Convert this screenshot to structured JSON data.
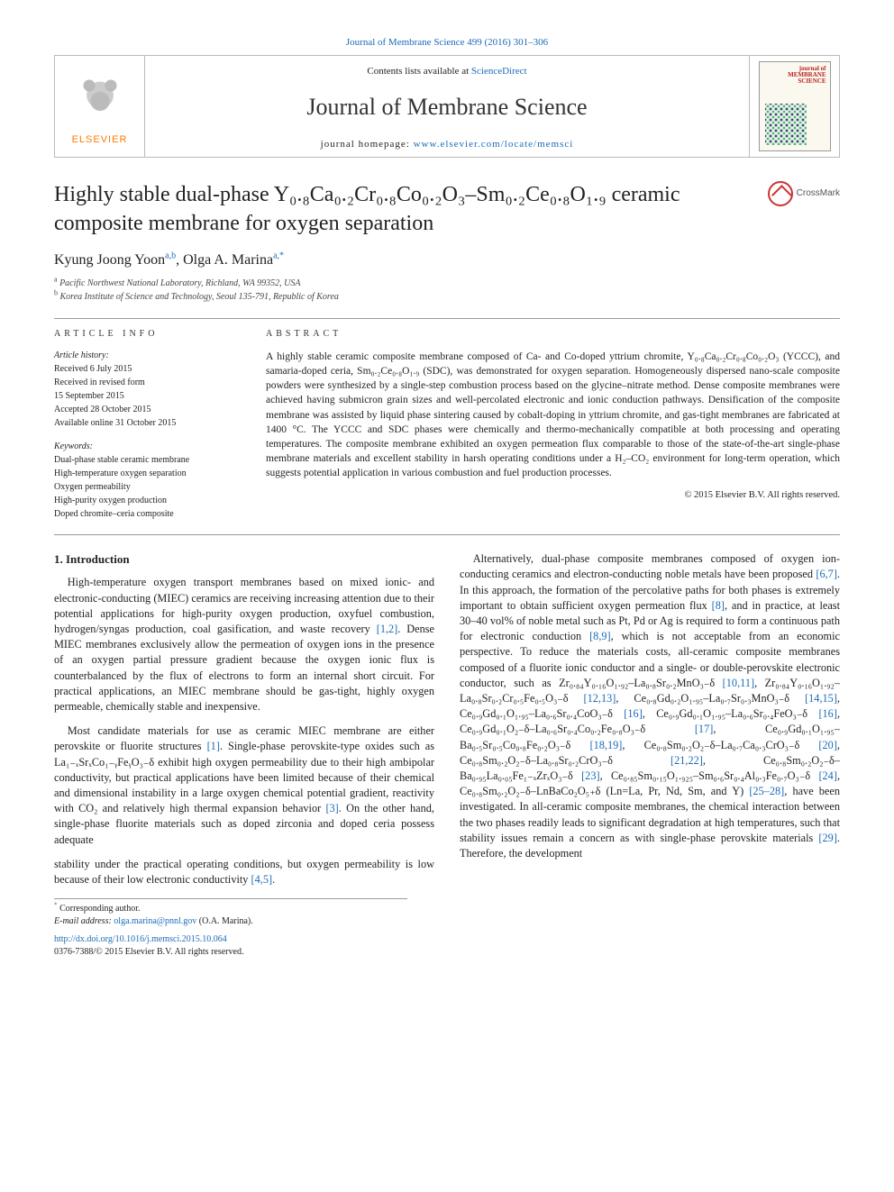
{
  "topCitation": "Journal of Membrane Science 499 (2016) 301–306",
  "header": {
    "elsevier": "ELSEVIER",
    "contentsPrefix": "Contents lists available at ",
    "contentsLink": "ScienceDirect",
    "journalName": "Journal of Membrane Science",
    "homepagePrefix": "journal homepage: ",
    "homepageLink": "www.elsevier.com/locate/memsci",
    "coverLine1": "journal of",
    "coverLine2": "MEMBRANE",
    "coverLine3": "SCIENCE"
  },
  "title": "Highly stable dual-phase Y₀.₈Ca₀.₂Cr₀.₈Co₀.₂O₃–Sm₀.₂Ce₀.₈O₁.₉ ceramic composite membrane for oxygen separation",
  "crossmark": "CrossMark",
  "authors": {
    "a1_name": "Kyung Joong Yoon",
    "a1_sup": "a,b",
    "sep": ", ",
    "a2_name": "Olga A. Marina",
    "a2_sup": "a,",
    "star": "*"
  },
  "affiliations": {
    "a_sup": "a",
    "a_text": " Pacific Northwest National Laboratory, Richland, WA 99352, USA",
    "b_sup": "b",
    "b_text": " Korea Institute of Science and Technology, Seoul 135-791, Republic of Korea"
  },
  "meta": {
    "leftHeading": "article info",
    "historyLabel": "Article history:",
    "received": "Received 6 July 2015",
    "revised1": "Received in revised form",
    "revised2": "15 September 2015",
    "accepted": "Accepted 28 October 2015",
    "online": "Available online 31 October 2015",
    "keywordsLabel": "Keywords:",
    "kw1": "Dual-phase stable ceramic membrane",
    "kw2": "High-temperature oxygen separation",
    "kw3": "Oxygen permeability",
    "kw4": "High-purity oxygen production",
    "kw5": "Doped chromite–ceria composite",
    "abstractHeading": "abstract"
  },
  "abstractText": "A highly stable ceramic composite membrane composed of Ca- and Co-doped yttrium chromite, Y₀.₈Ca₀.₂Cr₀.₈Co₀.₂O₃ (YCCC), and samaria-doped ceria, Sm₀.₂Ce₀.₈O₁.₉ (SDC), was demonstrated for oxygen separation. Homogeneously dispersed nano-scale composite powders were synthesized by a single-step combustion process based on the glycine–nitrate method. Dense composite membranes were achieved having submicron grain sizes and well-percolated electronic and ionic conduction pathways. Densification of the composite membrane was assisted by liquid phase sintering caused by cobalt-doping in yttrium chromite, and gas-tight membranes are fabricated at 1400 °C. The YCCC and SDC phases were chemically and thermo-mechanically compatible at both processing and operating temperatures. The composite membrane exhibited an oxygen permeation flux comparable to those of the state-of-the-art single-phase membrane materials and excellent stability in harsh operating conditions under a H₂–CO₂ environment for long-term operation, which suggests potential application in various combustion and fuel production processes.",
  "copyright": "© 2015 Elsevier B.V. All rights reserved.",
  "intro": {
    "heading": "1.  Introduction",
    "p1a": "High-temperature oxygen transport membranes based on mixed ionic- and electronic-conducting (MIEC) ceramics are receiving increasing attention due to their potential applications for high-purity oxygen production, oxyfuel combustion, hydrogen/syngas production, coal gasification, and waste recovery ",
    "p1link": "[1,2]",
    "p1b": ". Dense MIEC membranes exclusively allow the permeation of oxygen ions in the presence of an oxygen partial pressure gradient because the oxygen ionic flux is counterbalanced by the flux of electrons to form an internal short circuit. For practical applications, an MIEC membrane should be gas-tight, highly oxygen permeable, chemically stable and inexpensive.",
    "p2a": "Most candidate materials for use as ceramic MIEC membrane are either perovskite or fluorite structures ",
    "p2link1": "[1]",
    "p2b": ". Single-phase perovskite-type oxides such as La₁₋ₓSrₓCo₁₋ᵧFeᵧO₃₋δ exhibit high oxygen permeability due to their high ambipolar conductivity, but practical applications have been limited because of their chemical and dimensional instability in a large oxygen chemical potential gradient, reactivity with CO₂ and relatively high thermal expansion behavior ",
    "p2link2": "[3]",
    "p2c": ". On the other hand, single-phase fluorite materials such as doped zirconia and doped ceria possess adequate",
    "p2d_a": "stability under the practical operating conditions, but oxygen permeability is low because of their low electronic conductivity ",
    "p2d_link": "[4,5]",
    "p2d_b": ".",
    "p3a": "Alternatively, dual-phase composite membranes composed of oxygen ion-conducting ceramics and electron-conducting noble metals have been proposed ",
    "p3l1": "[6,7]",
    "p3b": ". In this approach, the formation of the percolative paths for both phases is extremely important to obtain sufficient oxygen permeation flux ",
    "p3l2": "[8]",
    "p3c": ", and in practice, at least 30–40 vol% of noble metal such as Pt, Pd or Ag is required to form a continuous path for electronic conduction ",
    "p3l3": "[8,9]",
    "p3d": ", which is not acceptable from an economic perspective. To reduce the materials costs, all-ceramic composite membranes composed of a fluorite ionic conductor and a single- or double-perovskite electronic conductor, such as Zr₀.₈₄Y₀.₁₆O₁.₉₂–La₀.₈Sr₀.₂MnO₃₋δ ",
    "p3l4": "[10,11]",
    "p3e": ", Zr₀.₈₄Y₀.₁₆O₁.₉₂–La₀.₈Sr₀.₂Cr₀.₅Fe₀.₅O₃₋δ ",
    "p3l5": "[12,13]",
    "p3f": ", Ce₀.₈Gd₀.₂O₁.₉₅–La₀.₇Sr₀.₃MnO₃₋δ ",
    "p3l6": "[14,15]",
    "p3g": ", Ce₀.₉Gd₀.₁O₁.₉₅–La₀.₆Sr₀.₄CoO₃₋δ ",
    "p3l7": "[16]",
    "p3h": ", Ce₀.₉Gd₀.₁O₁.₉₅–La₀.₆Sr₀.₄FeO₃₋δ ",
    "p3l8": "[16]",
    "p3i": ", Ce₀.₉Gd₀.₁O₂₋δ–La₀.₆Sr₀.₄Co₀.₂Fe₀.₈O₃₋δ ",
    "p3l9": "[17]",
    "p3j": ", Ce₀.₉Gd₀.₁O₁.₉₅–Ba₀.₅Sr₀.₅Co₀.₈Fe₀.₂O₃₋δ ",
    "p3l10": "[18,19]",
    "p3k": ", Ce₀.₈Sm₀.₂O₂₋δ–La₀.₇Ca₀.₃CrO₃₋δ ",
    "p3l11": "[20]",
    "p3l": ", Ce₀.₈Sm₀.₂O₂₋δ–La₀.₈Sr₀.₂CrO₃₋δ ",
    "p3l12": "[21,22]",
    "p3m": ", Ce₀.₈Sm₀.₂O₂₋δ–Ba₀.₉₅La₀.₀₅Fe₁₋ₓZrₓO₃₋δ ",
    "p3l13": "[23]",
    "p3n": ", Ce₀.₈₅Sm₀.₁₅O₁.₉₂₅–Sm₀.₆Sr₀.₄Al₀.₃Fe₀.₇O₃₋δ ",
    "p3l14": "[24]",
    "p3o": ", Ce₀.₈Sm₀.₂O₂₋δ–LnBaCo₂O₅₊δ (Ln=La, Pr, Nd, Sm, and Y) ",
    "p3l15": "[25–28]",
    "p3p": ", have been investigated. In all-ceramic composite membranes, the chemical interaction between the two phases readily leads to significant degradation at high temperatures, such that stability issues remain a concern as with single-phase perovskite materials ",
    "p3l16": "[29]",
    "p3q": ". Therefore, the development"
  },
  "footnote": {
    "corrLabel": "Corresponding author.",
    "emailLabel": "E-mail address: ",
    "email": "olga.marina@pnnl.gov",
    "emailTail": " (O.A. Marina).",
    "doi": "http://dx.doi.org/10.1016/j.memsci.2015.10.064",
    "issn": "0376-7388/© 2015 Elsevier B.V. All rights reserved."
  },
  "colors": {
    "link": "#1a6bb8",
    "elsevierOrange": "#ff7a00",
    "rule": "#999999"
  }
}
